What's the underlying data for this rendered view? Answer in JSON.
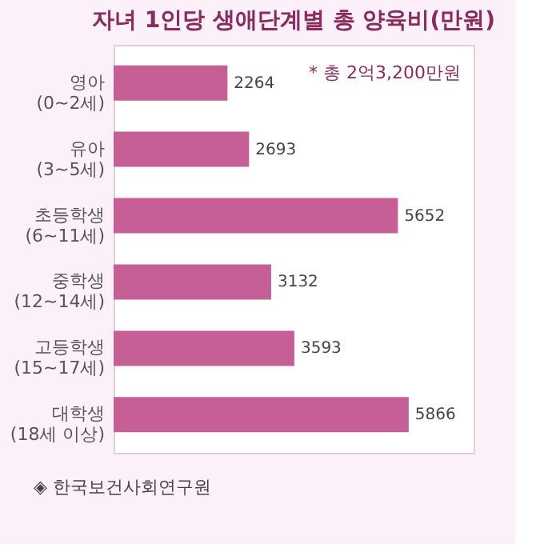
{
  "chart_data": {
    "type": "bar",
    "orientation": "horizontal",
    "title": "자녀 1인당 생애단계별 총 양육비(만원)",
    "categories": [
      "영아\n(0~2세)",
      "유아\n(3~5세)",
      "초등학생\n(6~11세)",
      "중학생\n(12~14세)",
      "고등학생\n(15~17세)",
      "대학생\n(18세 이상)"
    ],
    "values": [
      2264,
      2693,
      5652,
      3132,
      3593,
      5866
    ],
    "color": "#c75f97",
    "data_labels": true,
    "annotations": [
      "* 총 2억3,200만원",
      "◈ 한국보건사회연구원"
    ]
  }
}
